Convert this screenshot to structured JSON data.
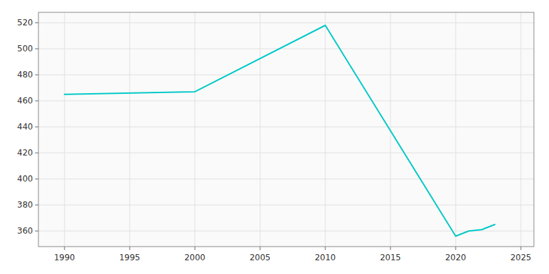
{
  "chart_data": {
    "type": "line",
    "x": [
      1990,
      2000,
      2010,
      2020,
      2021,
      2022,
      2023
    ],
    "values": [
      465,
      467,
      518,
      356,
      360,
      361,
      365
    ],
    "color": "#00C8C8",
    "xlim": [
      1988,
      2026
    ],
    "ylim": [
      348,
      528
    ],
    "xticks": [
      1990,
      1995,
      2000,
      2005,
      2010,
      2015,
      2020,
      2025
    ],
    "yticks": [
      360,
      380,
      400,
      420,
      440,
      460,
      480,
      500,
      520
    ],
    "grid": true
  }
}
